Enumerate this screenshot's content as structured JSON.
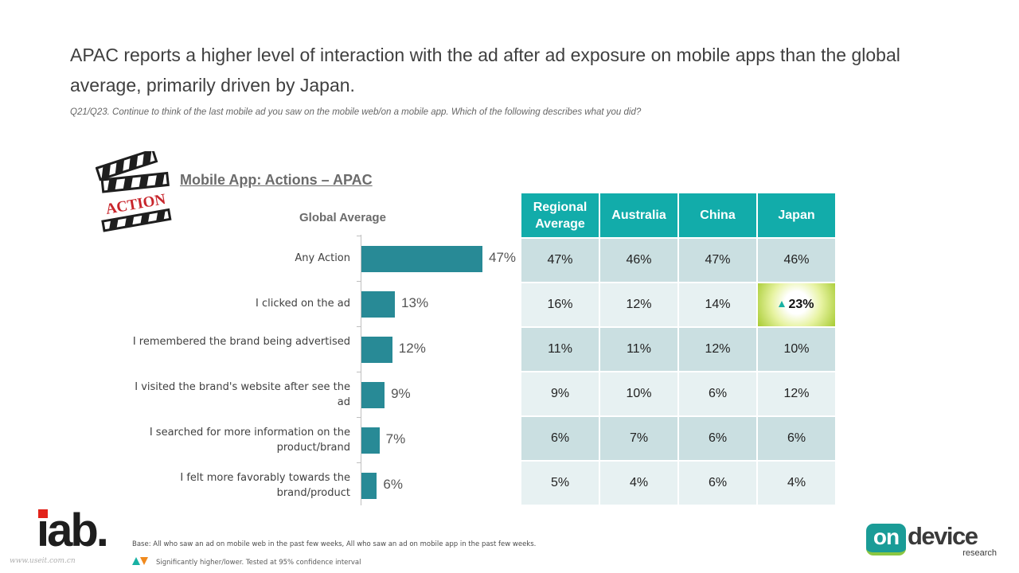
{
  "slide": {
    "title": "APAC reports a higher level of interaction with the ad after ad exposure on mobile apps than the global average, primarily driven by Japan.",
    "question": "Q21/Q23. Continue to think of the last mobile ad you saw on the mobile web/on a mobile app. Which of the following describes what you did?",
    "clapper_text": "ACTION",
    "base_note": "Base: All who saw an ad on mobile web in the past few weeks, All who saw an ad on mobile app in the past few weeks.",
    "significance_note": "Significantly higher/lower. Tested at 95% confidence interval",
    "watermark": "www.useit.com.cn",
    "logos": {
      "iab": "iab.",
      "ondevice_badge": "on",
      "ondevice_word": "device",
      "ondevice_sub": "research"
    },
    "colors": {
      "bar": "#288a96",
      "header": "#12acaa",
      "row_odd": "#cadfe1",
      "row_even": "#e7f1f2",
      "sig_up": "#19b1a3",
      "sig_down": "#f08a1e"
    }
  },
  "chart_data": [
    {
      "type": "bar",
      "orientation": "horizontal",
      "title": "Mobile App: Actions –  APAC",
      "subtitle": "Global Average",
      "categories": [
        "Any Action",
        "I clicked on the ad",
        "I remembered the brand being advertised",
        "I visited the brand's website after see the ad",
        "I searched for more information on the product/brand",
        "I felt more favorably towards the brand/product"
      ],
      "values": [
        47,
        13,
        12,
        9,
        7,
        6
      ],
      "value_labels": [
        "47%",
        "13%",
        "12%",
        "9%",
        "7%",
        "6%"
      ],
      "xlim": [
        0,
        50
      ],
      "grid": false
    },
    {
      "type": "table",
      "columns": [
        "Regional Average",
        "Australia",
        "China",
        "Japan"
      ],
      "rows": [
        [
          "47%",
          "46%",
          "47%",
          "46%"
        ],
        [
          "16%",
          "12%",
          "14%",
          "23%"
        ],
        [
          "11%",
          "11%",
          "12%",
          "10%"
        ],
        [
          "9%",
          "10%",
          "6%",
          "12%"
        ],
        [
          "6%",
          "7%",
          "6%",
          "6%"
        ],
        [
          "5%",
          "4%",
          "6%",
          "4%"
        ]
      ],
      "significant_higher": [
        [
          1,
          3
        ]
      ]
    }
  ]
}
